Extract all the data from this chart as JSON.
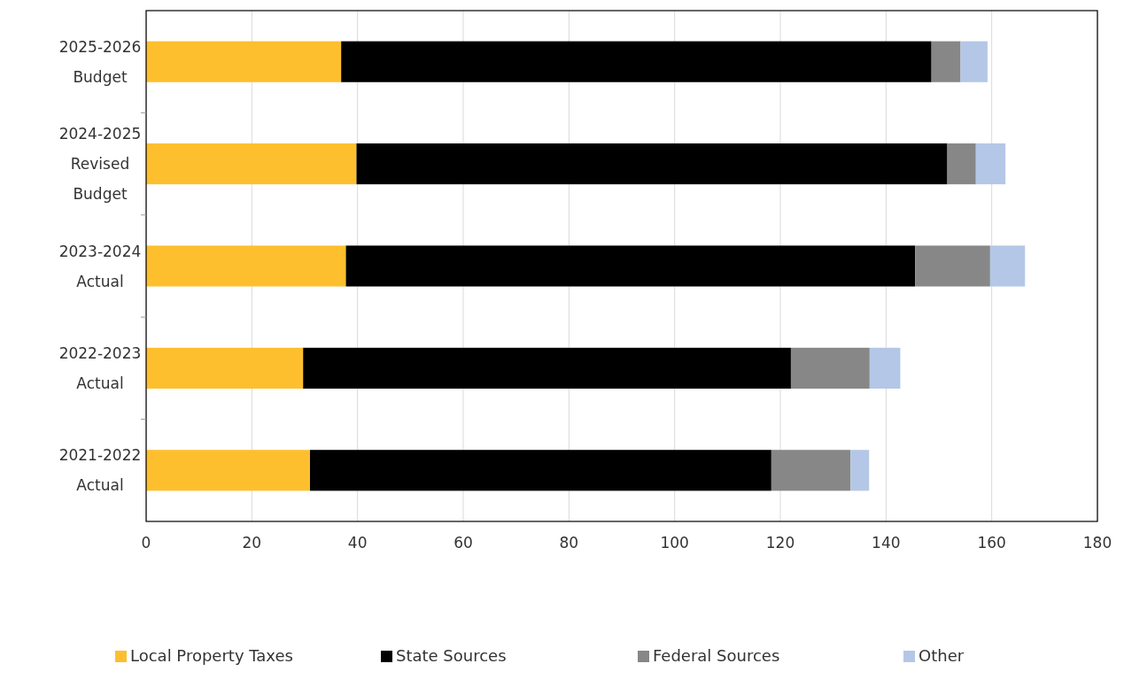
{
  "chart_data": {
    "type": "bar",
    "orientation": "horizontal",
    "stacked": true,
    "categories": [
      "2025-2026\nBudget",
      "2024-2025\nRevised\nBudget",
      "2023-2024\nActual",
      "2022-2023\nActual",
      "2021-2022\nActual"
    ],
    "series": [
      {
        "name": "Local Property Taxes",
        "color": "#fdbf2d",
        "values": [
          36.9,
          39.8,
          37.8,
          29.7,
          31
        ]
      },
      {
        "name": "State Sources",
        "color": "#000000",
        "values": [
          111.7,
          111.8,
          107.7,
          92.3,
          87.3
        ]
      },
      {
        "name": "Federal Sources",
        "color": "#878787",
        "values": [
          5.5,
          5.4,
          14.2,
          14.9,
          15
        ]
      },
      {
        "name": "Other",
        "color": "#b4c7e7",
        "values": [
          5.1,
          5.6,
          6.6,
          5.8,
          3.5
        ]
      }
    ],
    "xlim": [
      0,
      180
    ],
    "xticks": [
      0,
      20,
      40,
      60,
      80,
      100,
      120,
      140,
      160,
      180
    ],
    "grid": "x",
    "legend": "bottom"
  }
}
